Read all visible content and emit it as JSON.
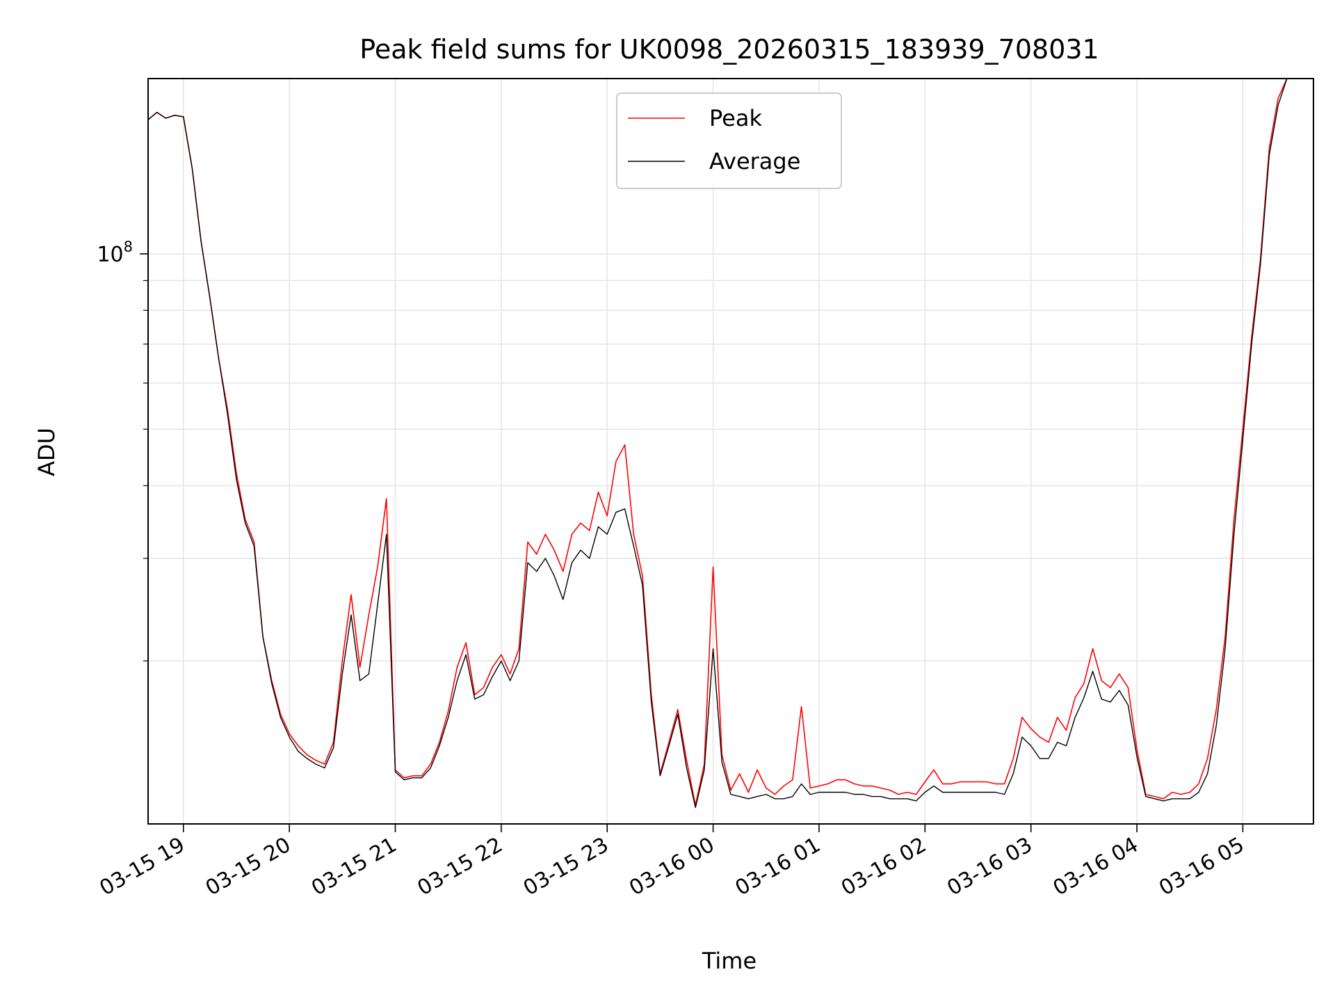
{
  "chart_data": {
    "type": "line",
    "title": "Peak field sums for UK0098_20260315_183939_708031",
    "xlabel": "Time",
    "ylabel": "ADU",
    "yscale": "log",
    "ylim": [
      10500000,
      200000000
    ],
    "xlim": [
      "03-15 18:40",
      "03-16 05:40"
    ],
    "grid": true,
    "legend_position": "upper center",
    "x_tick_labels": [
      "03-15 19",
      "03-15 20",
      "03-15 21",
      "03-15 22",
      "03-15 23",
      "03-16 00",
      "03-16 01",
      "03-16 02",
      "03-16 03",
      "03-16 04",
      "03-16 05"
    ],
    "y_tick_label": {
      "base": "10",
      "exponent": "8",
      "value": 100000000
    },
    "x": [
      "03-15 18:40",
      "03-15 18:45",
      "03-15 18:50",
      "03-15 18:55",
      "03-15 19:00",
      "03-15 19:05",
      "03-15 19:10",
      "03-15 19:15",
      "03-15 19:20",
      "03-15 19:25",
      "03-15 19:30",
      "03-15 19:35",
      "03-15 19:40",
      "03-15 19:45",
      "03-15 19:50",
      "03-15 19:55",
      "03-15 20:00",
      "03-15 20:05",
      "03-15 20:10",
      "03-15 20:15",
      "03-15 20:20",
      "03-15 20:25",
      "03-15 20:30",
      "03-15 20:35",
      "03-15 20:40",
      "03-15 20:45",
      "03-15 20:50",
      "03-15 20:55",
      "03-15 21:00",
      "03-15 21:05",
      "03-15 21:10",
      "03-15 21:15",
      "03-15 21:20",
      "03-15 21:25",
      "03-15 21:30",
      "03-15 21:35",
      "03-15 21:40",
      "03-15 21:45",
      "03-15 21:50",
      "03-15 21:55",
      "03-15 22:00",
      "03-15 22:05",
      "03-15 22:10",
      "03-15 22:15",
      "03-15 22:20",
      "03-15 22:25",
      "03-15 22:30",
      "03-15 22:35",
      "03-15 22:40",
      "03-15 22:45",
      "03-15 22:50",
      "03-15 22:55",
      "03-15 23:00",
      "03-15 23:05",
      "03-15 23:10",
      "03-15 23:15",
      "03-15 23:20",
      "03-15 23:25",
      "03-15 23:30",
      "03-15 23:35",
      "03-15 23:40",
      "03-15 23:45",
      "03-15 23:50",
      "03-15 23:55",
      "03-16 00:00",
      "03-16 00:05",
      "03-16 00:10",
      "03-16 00:15",
      "03-16 00:20",
      "03-16 00:25",
      "03-16 00:30",
      "03-16 00:35",
      "03-16 00:40",
      "03-16 00:45",
      "03-16 00:50",
      "03-16 00:55",
      "03-16 01:00",
      "03-16 01:05",
      "03-16 01:10",
      "03-16 01:15",
      "03-16 01:20",
      "03-16 01:25",
      "03-16 01:30",
      "03-16 01:35",
      "03-16 01:40",
      "03-16 01:45",
      "03-16 01:50",
      "03-16 01:55",
      "03-16 02:00",
      "03-16 02:05",
      "03-16 02:10",
      "03-16 02:15",
      "03-16 02:20",
      "03-16 02:25",
      "03-16 02:30",
      "03-16 02:35",
      "03-16 02:40",
      "03-16 02:45",
      "03-16 02:50",
      "03-16 02:55",
      "03-16 03:00",
      "03-16 03:05",
      "03-16 03:10",
      "03-16 03:15",
      "03-16 03:20",
      "03-16 03:25",
      "03-16 03:30",
      "03-16 03:35",
      "03-16 03:40",
      "03-16 03:45",
      "03-16 03:50",
      "03-16 03:55",
      "03-16 04:00",
      "03-16 04:05",
      "03-16 04:10",
      "03-16 04:15",
      "03-16 04:20",
      "03-16 04:25",
      "03-16 04:30",
      "03-16 04:35",
      "03-16 04:40",
      "03-16 04:45",
      "03-16 04:50",
      "03-16 04:55",
      "03-16 05:00",
      "03-16 05:05",
      "03-16 05:10",
      "03-16 05:15",
      "03-16 05:20",
      "03-16 05:25",
      "03-16 05:30",
      "03-16 05:35",
      "03-16 05:40"
    ],
    "series": [
      {
        "name": "Peak",
        "color": "#ff0000",
        "values": [
          170000000,
          175000000,
          171000000,
          173000000,
          172000000,
          140000000,
          105000000,
          84000000,
          66000000,
          54000000,
          42000000,
          35000000,
          32000000,
          22000000,
          18500000,
          16200000,
          15000000,
          14300000,
          13800000,
          13500000,
          13300000,
          14500000,
          20000000,
          26000000,
          19500000,
          24000000,
          29000000,
          38000000,
          13000000,
          12600000,
          12700000,
          12700000,
          13300000,
          14500000,
          16400000,
          19500000,
          21500000,
          17500000,
          18000000,
          19500000,
          20500000,
          19000000,
          21000000,
          32000000,
          30500000,
          33000000,
          31000000,
          28500000,
          33000000,
          34500000,
          33500000,
          39000000,
          35500000,
          44000000,
          47000000,
          33000000,
          28000000,
          17500000,
          12800000,
          14500000,
          16500000,
          13500000,
          11300000,
          13300000,
          29000000,
          13800000,
          12000000,
          12800000,
          11900000,
          13000000,
          12100000,
          11800000,
          12200000,
          12500000,
          16700000,
          12100000,
          12200000,
          12300000,
          12500000,
          12500000,
          12300000,
          12200000,
          12200000,
          12100000,
          12000000,
          11800000,
          11900000,
          11800000,
          12400000,
          13000000,
          12300000,
          12300000,
          12400000,
          12400000,
          12400000,
          12400000,
          12300000,
          12300000,
          13600000,
          16000000,
          15300000,
          14800000,
          14500000,
          16000000,
          15200000,
          17300000,
          18300000,
          21000000,
          18500000,
          18000000,
          19000000,
          18000000,
          14100000,
          11800000,
          11700000,
          11600000,
          11900000,
          11800000,
          11900000,
          12300000,
          13600000,
          16500000,
          22000000,
          35000000,
          50000000,
          72000000,
          98000000,
          152000000,
          185000000,
          200000000,
          200000000,
          200000000,
          200000000
        ]
      },
      {
        "name": "Average",
        "color": "#000000",
        "values": [
          170000000,
          175000000,
          171000000,
          173000000,
          172000000,
          140000000,
          105000000,
          84000000,
          66000000,
          53000000,
          41000000,
          34500000,
          31500000,
          22000000,
          18300000,
          16000000,
          14800000,
          14000000,
          13600000,
          13300000,
          13100000,
          14200000,
          19000000,
          24000000,
          18500000,
          19000000,
          25000000,
          33000000,
          12900000,
          12500000,
          12600000,
          12600000,
          13100000,
          14300000,
          16000000,
          18500000,
          20500000,
          17200000,
          17500000,
          18800000,
          20000000,
          18500000,
          20000000,
          29500000,
          28500000,
          30000000,
          28000000,
          25500000,
          29500000,
          31000000,
          30000000,
          34000000,
          33000000,
          36000000,
          36500000,
          31500000,
          27000000,
          17000000,
          12700000,
          14300000,
          16200000,
          13100000,
          11200000,
          13000000,
          21000000,
          13400000,
          11800000,
          11700000,
          11600000,
          11700000,
          11800000,
          11600000,
          11600000,
          11700000,
          12300000,
          11800000,
          11900000,
          11900000,
          11900000,
          11900000,
          11800000,
          11800000,
          11700000,
          11700000,
          11600000,
          11600000,
          11600000,
          11500000,
          11900000,
          12200000,
          11900000,
          11900000,
          11900000,
          11900000,
          11900000,
          11900000,
          11900000,
          11800000,
          12800000,
          14800000,
          14300000,
          13600000,
          13600000,
          14500000,
          14300000,
          16000000,
          17300000,
          19200000,
          17200000,
          17000000,
          17800000,
          16800000,
          13700000,
          11700000,
          11600000,
          11500000,
          11600000,
          11600000,
          11600000,
          11900000,
          12800000,
          15500000,
          21000000,
          33000000,
          48000000,
          70000000,
          96000000,
          148000000,
          180000000,
          200000000,
          200000000,
          200000000,
          200000000
        ]
      }
    ]
  }
}
